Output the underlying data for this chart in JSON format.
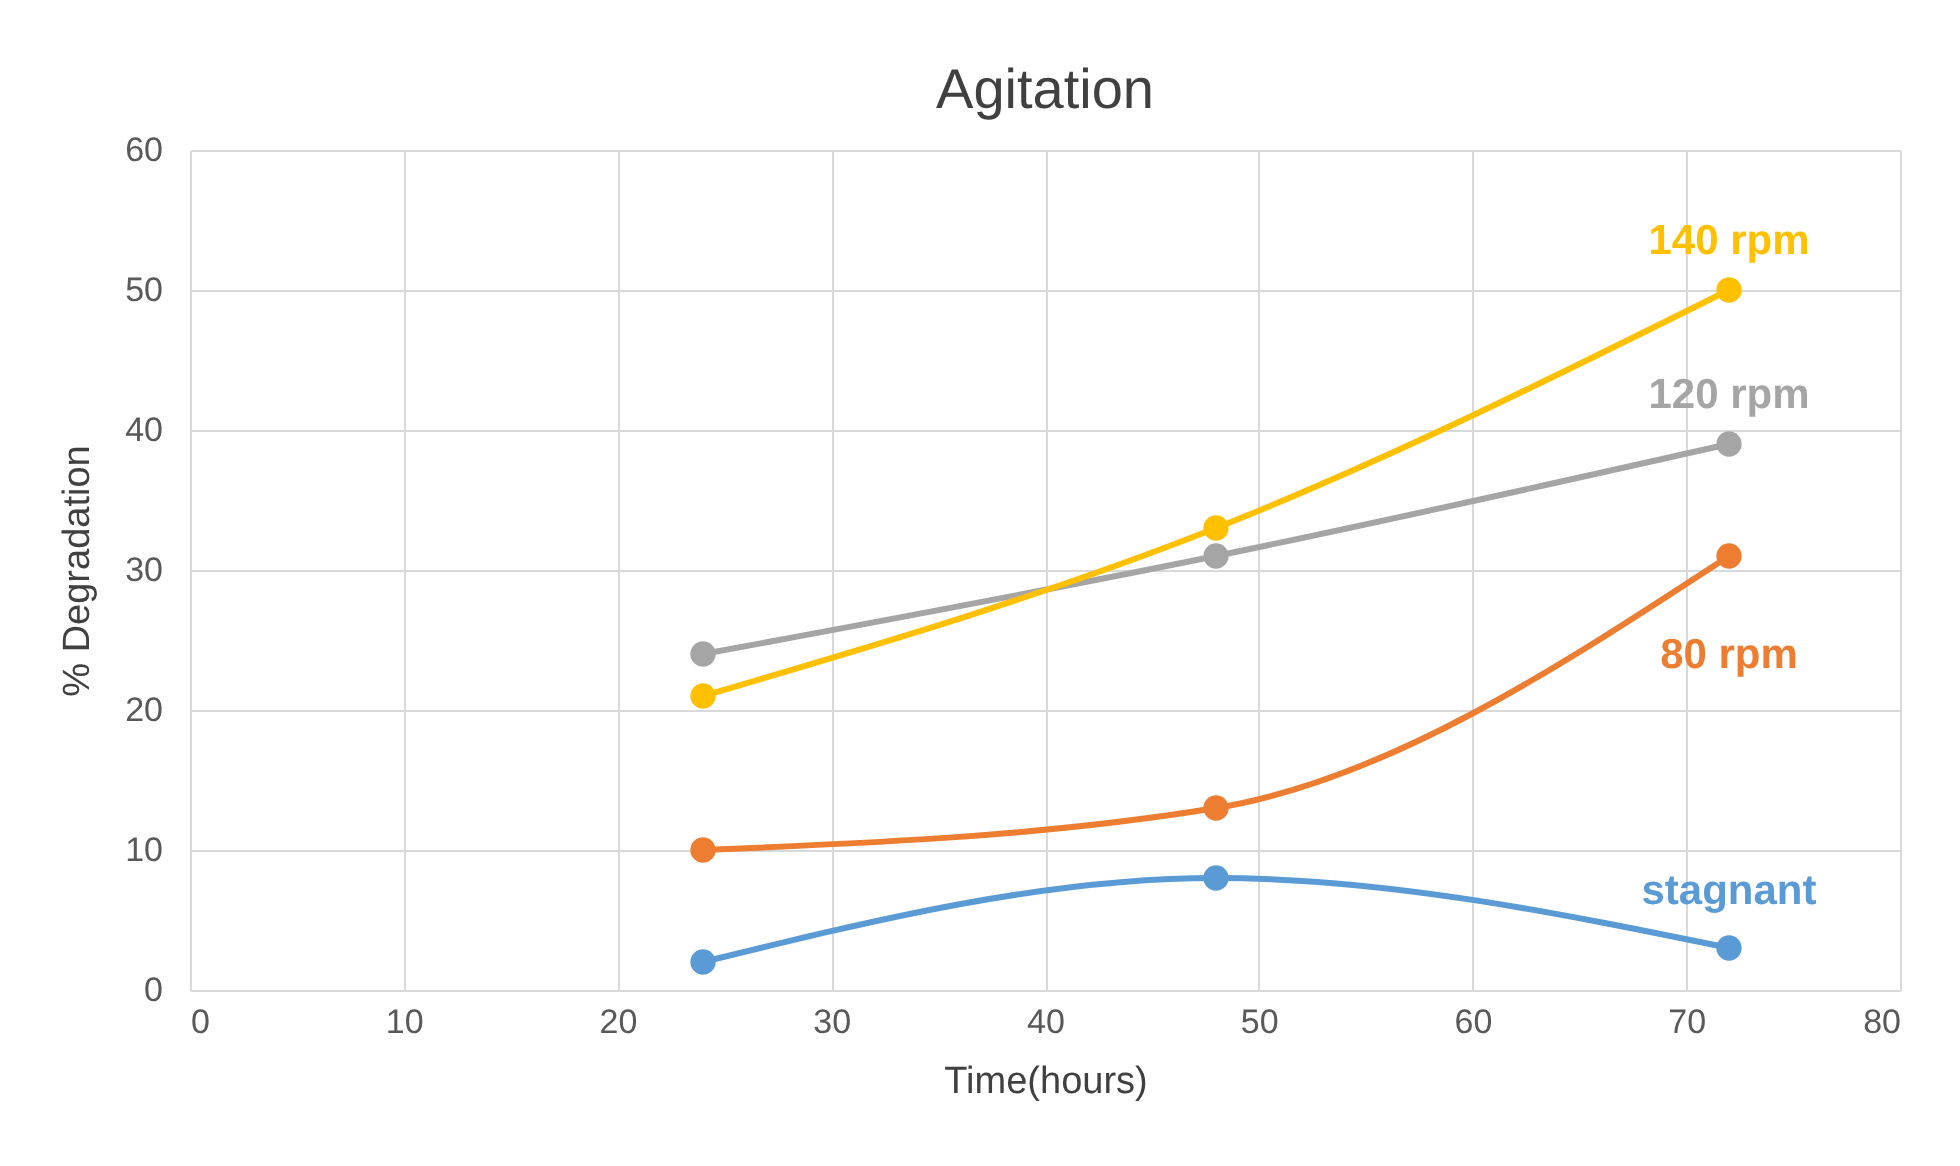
{
  "chart_data": {
    "type": "line",
    "title": "Agitation",
    "xlabel": "Time(hours)",
    "ylabel": "% Degradation",
    "x": [
      24,
      48,
      72
    ],
    "series": [
      {
        "name": "stagnant",
        "color": "#5b9bd5",
        "values": [
          2,
          8,
          3
        ]
      },
      {
        "name": "80 rpm",
        "color": "#ed7d31",
        "values": [
          10,
          13,
          31
        ]
      },
      {
        "name": "120 rpm",
        "color": "#a5a5a5",
        "values": [
          24,
          31,
          39
        ]
      },
      {
        "name": "140 rpm",
        "color": "#ffc000",
        "values": [
          21,
          33,
          50
        ]
      }
    ],
    "xlim": [
      0,
      80
    ],
    "xticks": [
      0,
      10,
      20,
      30,
      40,
      50,
      60,
      70,
      80
    ],
    "ylim": [
      0,
      60
    ],
    "yticks": [
      0,
      10,
      20,
      30,
      40,
      50,
      60
    ],
    "grid": true,
    "legend": false,
    "marker": "circle",
    "line_style": "solid"
  }
}
